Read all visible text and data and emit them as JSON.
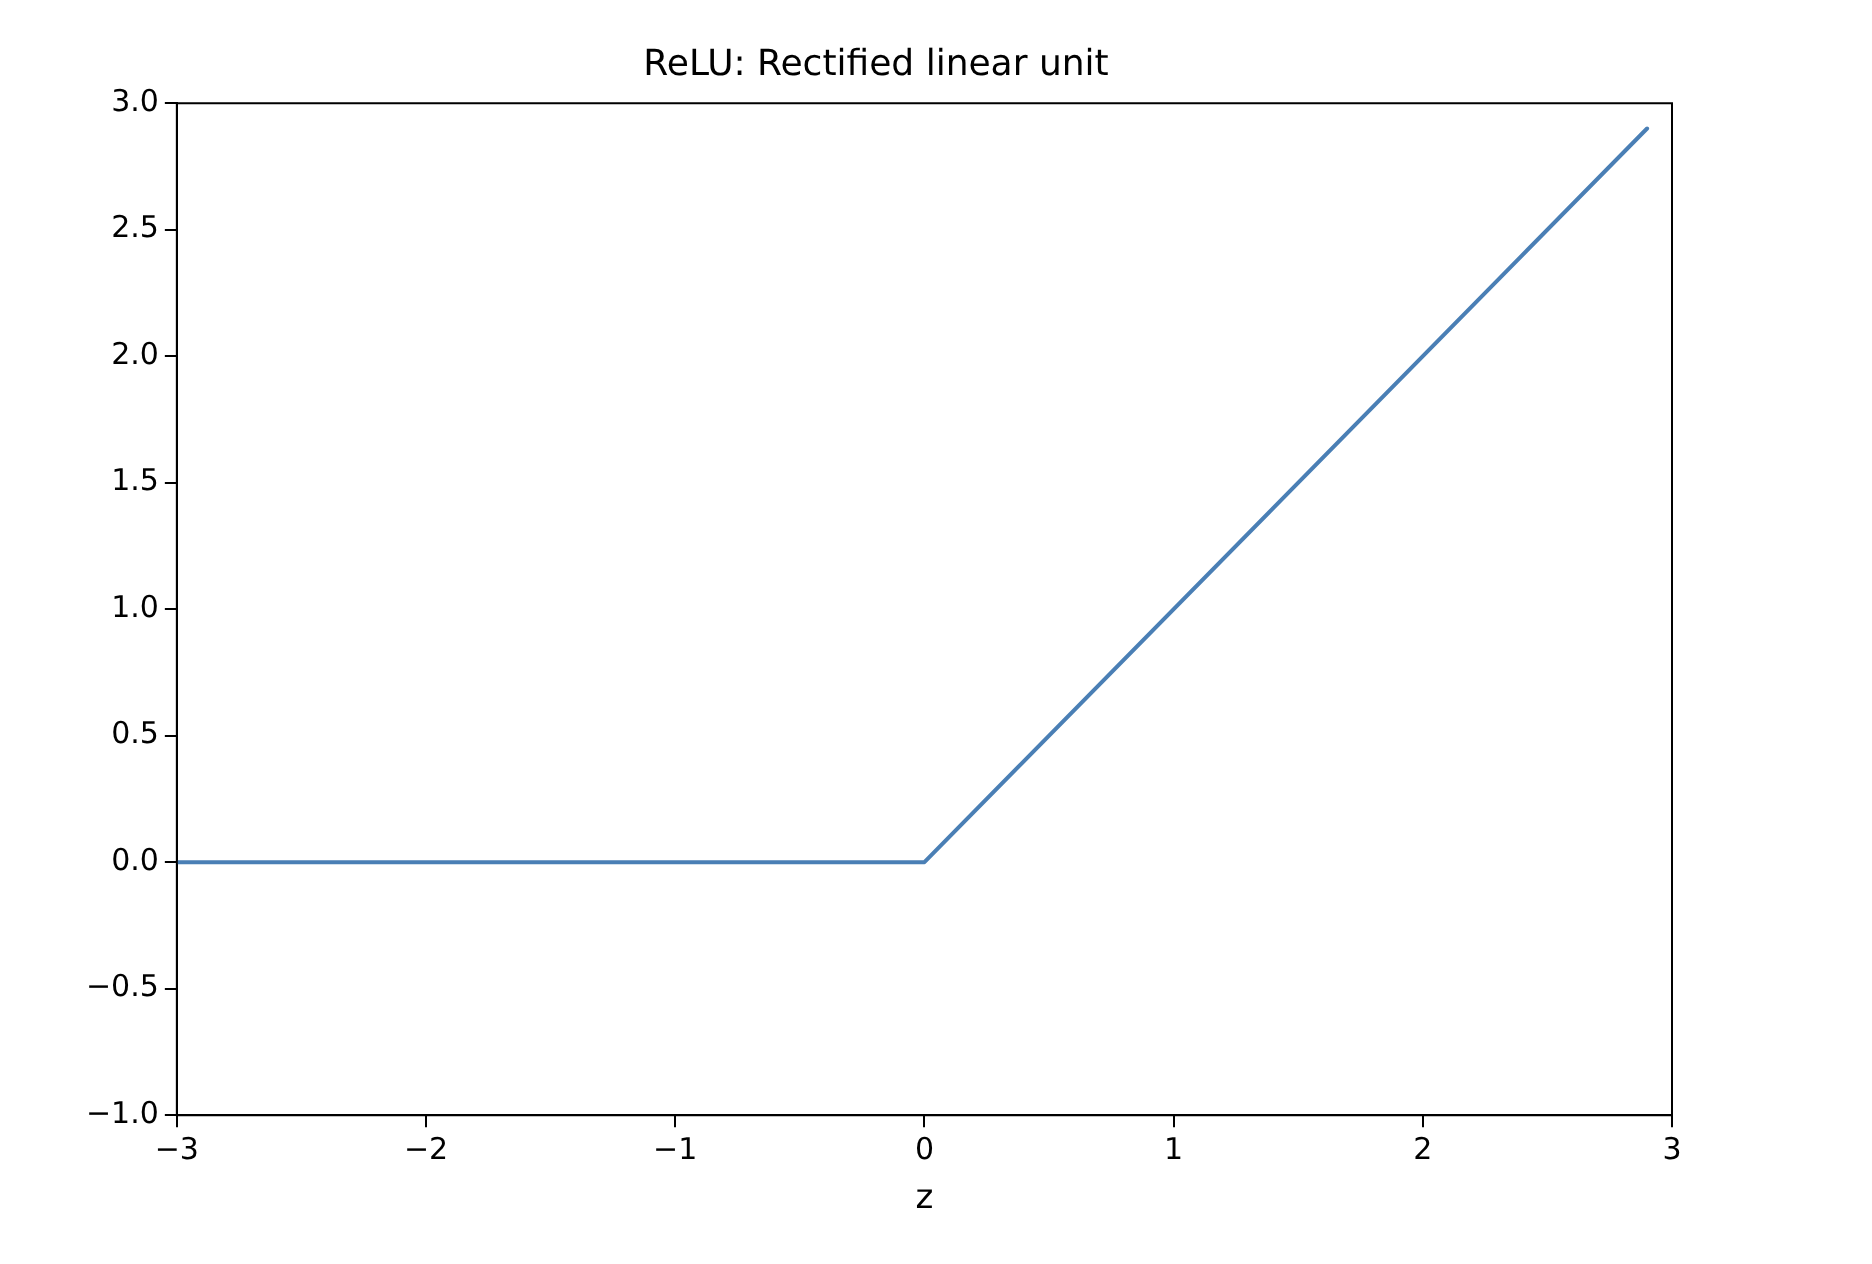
{
  "chart_data": {
    "type": "line",
    "title": "ReLU: Rectified linear unit",
    "xlabel": "z",
    "x": [
      -3,
      0,
      2.9
    ],
    "series": [
      {
        "color": "#4a7fb5",
        "values": [
          0,
          0,
          2.9
        ]
      }
    ],
    "xlim": [
      -3,
      3
    ],
    "xticks": [
      {
        "value": -3,
        "label": "−3"
      },
      {
        "value": -2,
        "label": "−2"
      },
      {
        "value": -1,
        "label": "−1"
      },
      0,
      1,
      2,
      3
    ],
    "ylim": [
      -1,
      3
    ],
    "yticks": [
      {
        "value": -1,
        "label": "−1.0"
      },
      {
        "value": -0.5,
        "label": "−0.5"
      },
      {
        "value": 0,
        "label": "0.0"
      },
      {
        "value": 0.5,
        "label": "0.5"
      },
      {
        "value": 1,
        "label": "1.0"
      },
      {
        "value": 1.5,
        "label": "1.5"
      },
      {
        "value": 2,
        "label": "2.0"
      },
      {
        "value": 2.5,
        "label": "2.5"
      },
      {
        "value": 3,
        "label": "3.0"
      }
    ],
    "grid": false,
    "legend": false,
    "marker": "none",
    "line_style": "solid"
  }
}
